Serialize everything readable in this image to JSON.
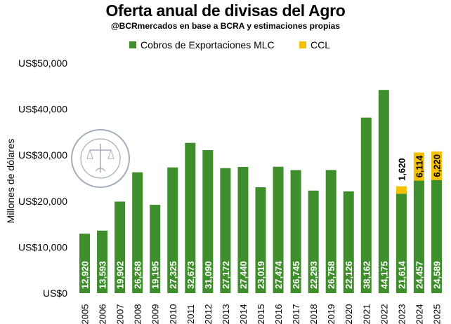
{
  "chart_data": {
    "type": "bar",
    "stacked": true,
    "title": "Oferta anual de divisas del Agro",
    "subtitle": "@BCRmercados en base a BCRA y estimaciones propias",
    "ylabel": "Millones de dólares",
    "xlabel": "",
    "ylim": [
      0,
      50000
    ],
    "yticks": [
      "US$0",
      "US$10,000",
      "US$20,000",
      "US$30,000",
      "US$40,000",
      "US$50,000"
    ],
    "ytick_values": [
      0,
      10000,
      20000,
      30000,
      40000,
      50000
    ],
    "grid": false,
    "legend_position": "top",
    "categories": [
      "2005",
      "2006",
      "2007",
      "2008",
      "2009",
      "2010",
      "2011",
      "2012",
      "2013",
      "2014",
      "2015",
      "2016",
      "2017",
      "2018",
      "2019",
      "2020",
      "2021",
      "2022",
      "2023",
      "2024",
      "2025"
    ],
    "series": [
      {
        "name": "Cobros de Exportaciones MLC",
        "color": "#3f8e2c",
        "values": [
          12920,
          13593,
          19902,
          26268,
          19195,
          27325,
          32673,
          31090,
          27172,
          27440,
          23019,
          27474,
          26745,
          22293,
          26758,
          22126,
          38162,
          44175,
          21614,
          24457,
          24589
        ],
        "labels": [
          "12,920",
          "13,593",
          "19,902",
          "26,268",
          "19,195",
          "27,325",
          "32,673",
          "31,090",
          "27,172",
          "27,440",
          "23,019",
          "27,474",
          "26,745",
          "22,293",
          "26,758",
          "22,126",
          "38,162",
          "44,175",
          "21,614",
          "24,457",
          "24,589"
        ]
      },
      {
        "name": "CCL",
        "color": "#f5c000",
        "values": [
          null,
          null,
          null,
          null,
          null,
          null,
          null,
          null,
          null,
          null,
          null,
          null,
          null,
          null,
          null,
          null,
          null,
          null,
          1620,
          6114,
          6220
        ],
        "labels": [
          "",
          "",
          "",
          "",
          "",
          "",
          "",
          "",
          "",
          "",
          "",
          "",
          "",
          "",
          "",
          "",
          "",
          "",
          "1,620",
          "6,114",
          "6,220"
        ]
      }
    ],
    "logo_text": "BOLSA DE COMERCIO DE ROSARIO"
  }
}
